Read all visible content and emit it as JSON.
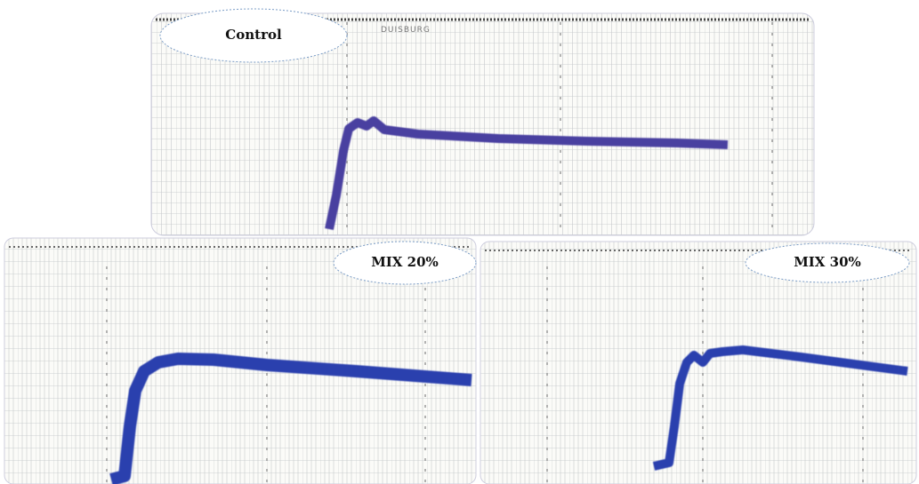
{
  "panels": [
    {
      "label": "Control",
      "header": "DUISBURG"
    },
    {
      "label": "MIX 20%"
    },
    {
      "label": "MIX 30%"
    }
  ]
}
